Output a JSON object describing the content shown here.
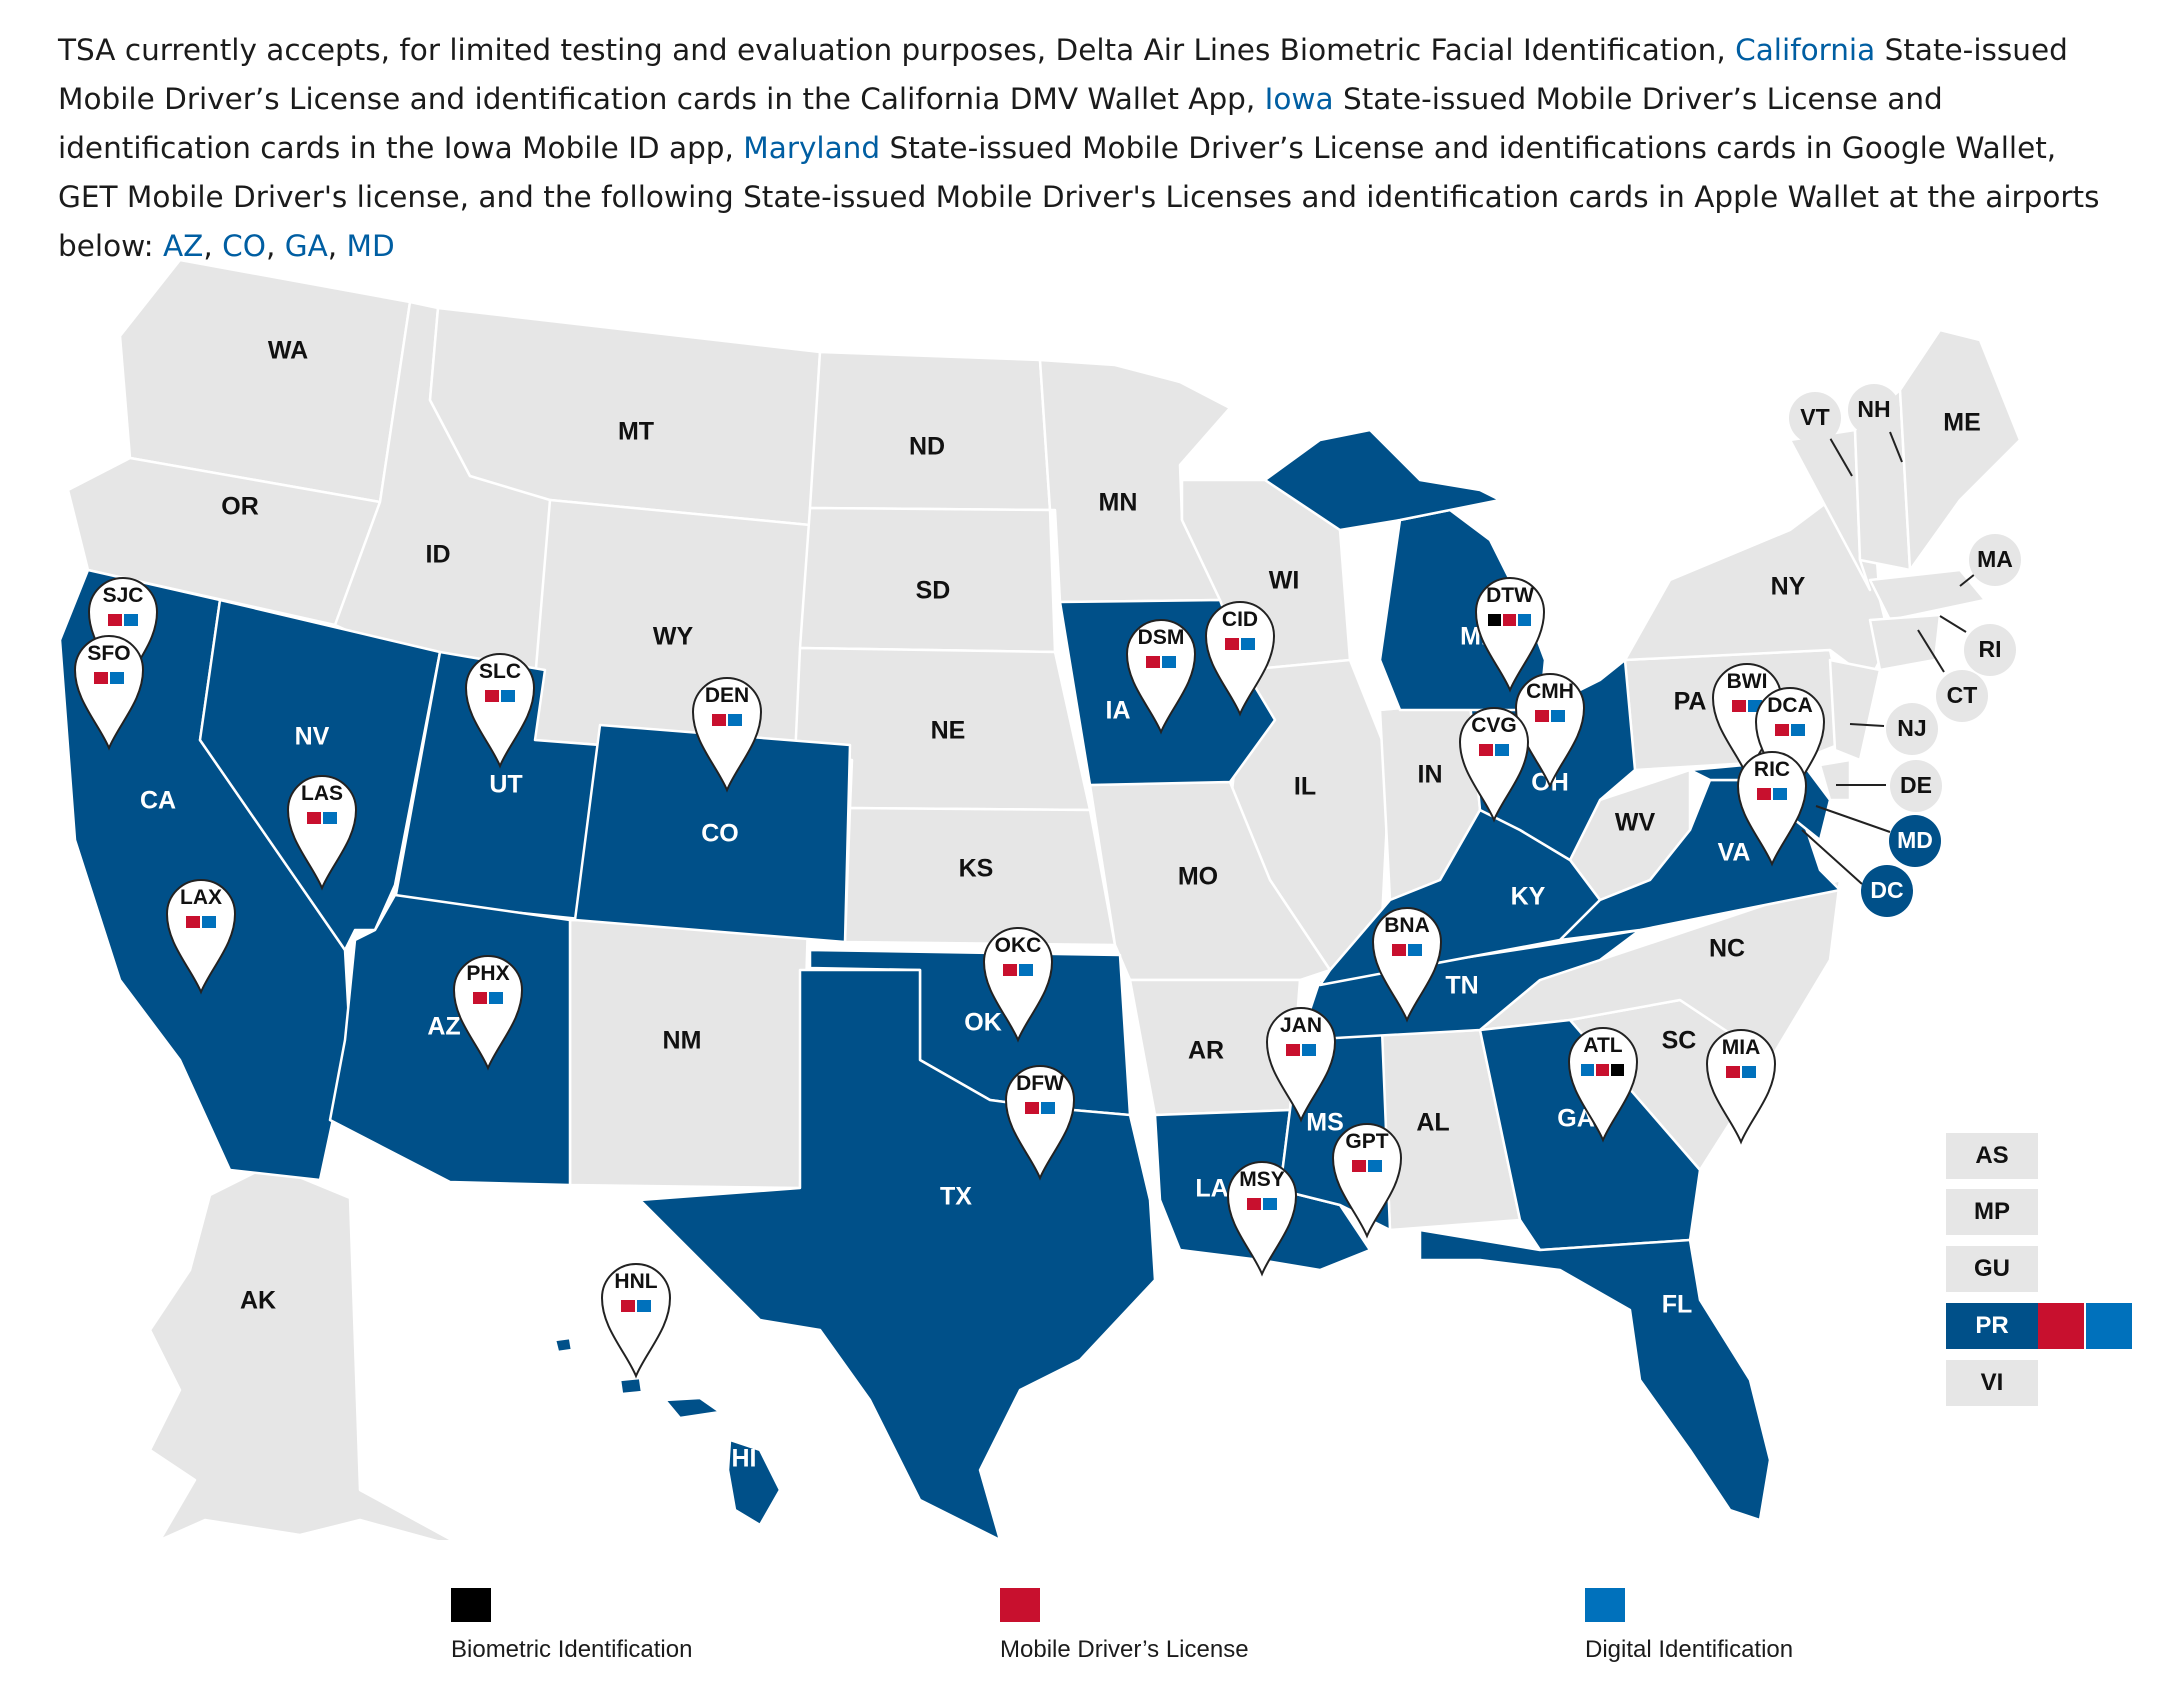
{
  "intro": {
    "s1": "TSA currently accepts, for limited testing and evaluation purposes, Delta Air Lines Biometric Facial Identification, ",
    "link_california": "California",
    "s2": " State-issued Mobile Driver’s License and identification cards in the California DMV Wallet App, ",
    "link_iowa": "Iowa",
    "s3": " State-issued Mobile Driver’s License and identification cards in the Iowa Mobile ID app, ",
    "link_maryland": "Maryland",
    "s4": " State-issued Mobile Driver’s License and identifications cards in Google Wallet, GET Mobile Driver's license, and the following State-issued Mobile Driver's Licenses and identification cards in Apple Wallet at the airports below: ",
    "link_az": "AZ",
    "sep1": ", ",
    "link_co": "CO",
    "sep2": ", ",
    "link_ga": "GA",
    "sep3": ", ",
    "link_md": "MD"
  },
  "colors": {
    "participating": "#005089",
    "non_participating": "#e6e6e6",
    "biometric": "#000000",
    "mdl": "#c8102e",
    "digital": "#0071bc",
    "link": "#005ea2"
  },
  "states": {
    "WA": "WA",
    "OR": "OR",
    "CA": "CA",
    "NV": "NV",
    "ID": "ID",
    "MT": "MT",
    "WY": "WY",
    "UT": "UT",
    "AZ": "AZ",
    "CO": "CO",
    "NM": "NM",
    "ND": "ND",
    "SD": "SD",
    "NE": "NE",
    "KS": "KS",
    "OK": "OK",
    "TX": "TX",
    "MN": "MN",
    "IA": "IA",
    "MO": "MO",
    "AR": "AR",
    "LA": "LA",
    "WI": "WI",
    "IL": "IL",
    "MI": "MI",
    "IN": "IN",
    "OH": "OH",
    "KY": "KY",
    "TN": "TN",
    "MS": "MS",
    "AL": "AL",
    "GA": "GA",
    "FL": "FL",
    "SC": "SC",
    "NC": "NC",
    "VA": "VA",
    "WV": "WV",
    "PA": "PA",
    "NY": "NY",
    "ME": "ME",
    "AK": "AK",
    "HI": "HI"
  },
  "small_states": {
    "VT": "VT",
    "NH": "NH",
    "MA": "MA",
    "RI": "RI",
    "CT": "CT",
    "NJ": "NJ",
    "DE": "DE",
    "MD": "MD",
    "DC": "DC"
  },
  "airports": {
    "SJC": "SJC",
    "SFO": "SFO",
    "LAX": "LAX",
    "LAS": "LAS",
    "SLC": "SLC",
    "PHX": "PHX",
    "DEN": "DEN",
    "HNL": "HNL",
    "OKC": "OKC",
    "DFW": "DFW",
    "DSM": "DSM",
    "CID": "CID",
    "MSY": "MSY",
    "JAN": "JAN",
    "GPT": "GPT",
    "BNA": "BNA",
    "ATL": "ATL",
    "MIA": "MIA",
    "DTW": "DTW",
    "CMH": "CMH",
    "CVG": "CVG",
    "BWI": "BWI",
    "DCA": "DCA",
    "RIC": "RIC"
  },
  "territories": {
    "AS": "AS",
    "MP": "MP",
    "GU": "GU",
    "PR": "PR",
    "VI": "VI"
  },
  "legend": {
    "biometric": "Biometric Identification",
    "mdl": "Mobile Driver’s License",
    "digital": "Digital Identification"
  }
}
